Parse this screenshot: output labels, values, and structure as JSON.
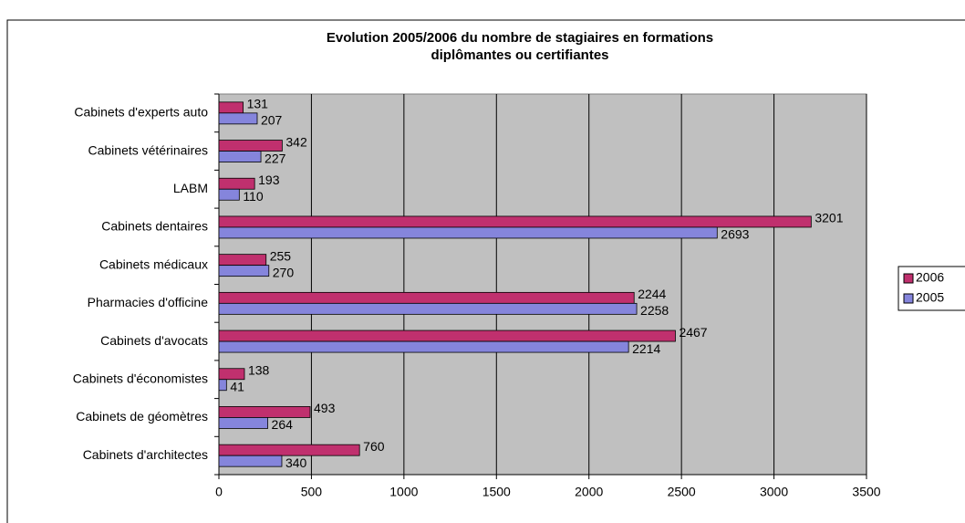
{
  "chart_data": {
    "type": "bar",
    "orientation": "horizontal",
    "title": [
      "Evolution 2005/2006 du nombre de stagiaires en formations",
      "diplômantes ou certifiantes"
    ],
    "categories": [
      "Cabinets d'experts auto",
      "Cabinets vétérinaires",
      "LABM",
      "Cabinets dentaires",
      "Cabinets médicaux",
      "Pharmacies d'officine",
      "Cabinets d'avocats",
      "Cabinets d'économistes",
      "Cabinets de géomètres",
      "Cabinets d'architectes"
    ],
    "series": [
      {
        "name": "2006",
        "color": "#c0306e",
        "values": [
          131,
          342,
          193,
          3201,
          255,
          2244,
          2467,
          138,
          493,
          760
        ]
      },
      {
        "name": "2005",
        "color": "#8585dc",
        "values": [
          207,
          227,
          110,
          2693,
          270,
          2258,
          2214,
          41,
          264,
          340
        ]
      }
    ],
    "xlim": [
      0,
      3500
    ],
    "xticks": [
      0,
      500,
      1000,
      1500,
      2000,
      2500,
      3000,
      3500
    ],
    "grid": true,
    "legend": "right"
  }
}
